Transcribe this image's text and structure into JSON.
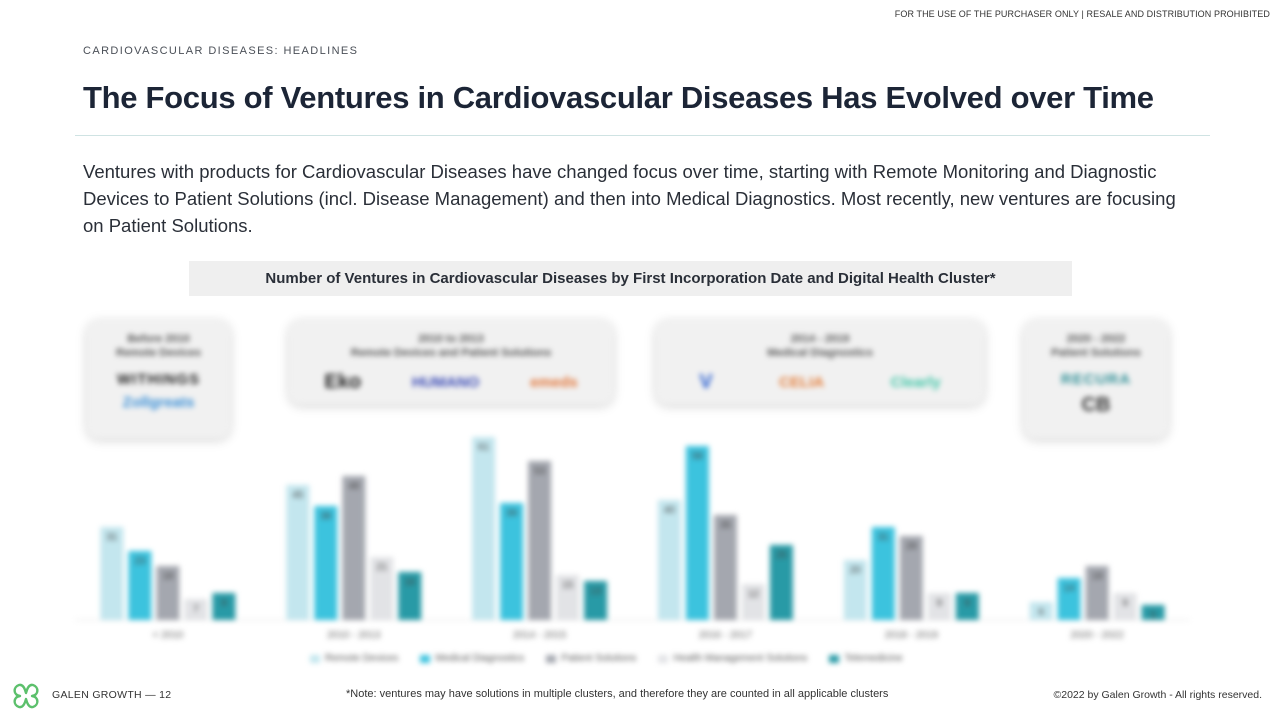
{
  "header": {
    "notice": "FOR THE USE OF THE PURCHASER ONLY | RESALE AND DISTRIBUTION PROHIBITED",
    "eyebrow": "CARDIOVASCULAR DISEASES: HEADLINES",
    "title": "The Focus of Ventures in Cardiovascular Diseases Has Evolved over Time",
    "intro": "Ventures with products for Cardiovascular Diseases have changed focus over time, starting with Remote Monitoring and Diagnostic Devices to Patient Solutions (incl. Disease Management) and then into Medical Diagnostics. Most recently, new ventures are focusing on Patient Solutions."
  },
  "eras": [
    {
      "label_line1": "Before 2010",
      "label_line2": "Remote Devices",
      "logos": [
        "WITHINGS",
        "Zollgreats"
      ]
    },
    {
      "label_line1": "2010 to 2013",
      "label_line2": "Remote Devices and Patient Solutions",
      "logos": [
        "Eko",
        "HUMANO",
        "emeds"
      ]
    },
    {
      "label_line1": "2014 - 2019",
      "label_line2": "Medical Diagnostics",
      "logos": [
        "V",
        "CELIA",
        "Clearly"
      ]
    },
    {
      "label_line1": "2020 - 2022",
      "label_line2": "Patient Solutions",
      "logos": [
        "RECURA",
        "CB"
      ]
    }
  ],
  "chart_data": {
    "type": "bar",
    "title": "Number of Ventures in Cardiovascular Diseases by First Incorporation Date and Digital Health Cluster*",
    "categories": [
      "< 2010",
      "2010 - 2013",
      "2014 - 2015",
      "2016 - 2017",
      "2018 - 2019",
      "2020 - 2022"
    ],
    "series": [
      {
        "name": "Remote Devices",
        "color": "#c3e6ee",
        "values": [
          31,
          45,
          61,
          40,
          20,
          6
        ]
      },
      {
        "name": "Medical Diagnostics",
        "color": "#3cc3de",
        "values": [
          23,
          38,
          39,
          58,
          31,
          14
        ]
      },
      {
        "name": "Patient Solutions",
        "color": "#a4a7af",
        "values": [
          18,
          48,
          53,
          35,
          28,
          18
        ]
      },
      {
        "name": "Health Management Solutions",
        "color": "#e2e3e6",
        "values": [
          7,
          21,
          15,
          12,
          9,
          9
        ]
      },
      {
        "name": "Telemedicine",
        "color": "#289aa6",
        "values": [
          9,
          16,
          13,
          25,
          9,
          5
        ]
      }
    ],
    "value_labels": true,
    "ylim": [
      0,
      65
    ],
    "legend_position": "bottom",
    "grid": false
  },
  "footer": {
    "brand": "GALEN GROWTH  —  12",
    "note": "*Note: ventures may have solutions in multiple clusters, and therefore they are counted in all applicable clusters",
    "copyright": "©2022 by Galen Growth  - All rights reserved.",
    "logo_icon": "galen-growth-logo-icon"
  }
}
